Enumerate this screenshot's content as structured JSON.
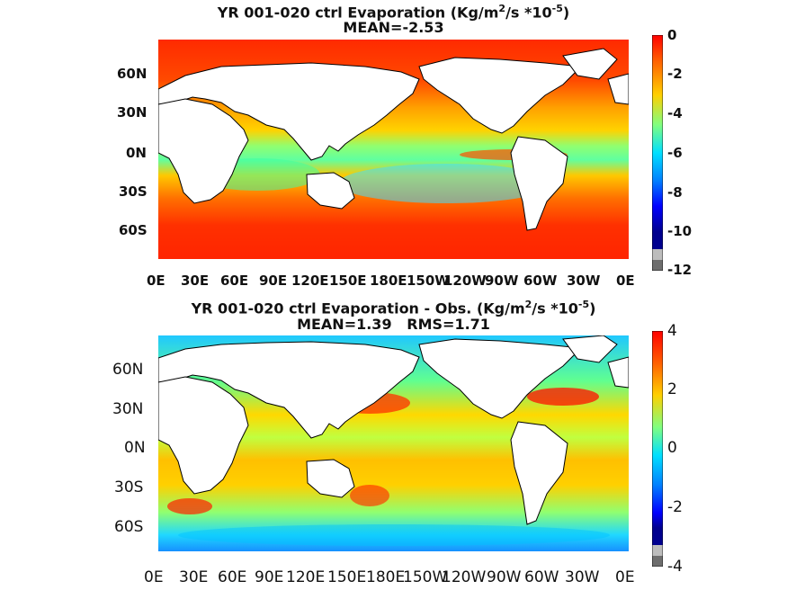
{
  "colors": {
    "land": "#ffffff",
    "jet": [
      "#00008f",
      "#0000ff",
      "#0080ff",
      "#00ffff",
      "#80ff80",
      "#ffff00",
      "#ff8000",
      "#ff0000",
      "#800000"
    ]
  },
  "top": {
    "title_line1": "YR 001-020 ctrl  Evaporation (Kg/m",
    "title_sup1": "2",
    "title_mid": "/s *10",
    "title_sup2": "-5",
    "title_end": ")",
    "mean_line": "MEAN=-2.53",
    "lat_labels": [
      "60N",
      "30N",
      "0N",
      "30S",
      "60S"
    ],
    "lon_labels": [
      "0E",
      "30E",
      "60E",
      "90E",
      "120E",
      "150E",
      "180E",
      "150W",
      "120W",
      "90W",
      "60W",
      "30W",
      "0E"
    ],
    "colorbar_labels": [
      "0",
      "-2",
      "-4",
      "-6",
      "-8",
      "-10",
      "-12"
    ],
    "colorbar_range": [
      -12,
      0
    ]
  },
  "bottom": {
    "title_line1": "YR 001-020 ctrl Evaporation - Obs. (Kg/m",
    "title_sup1": "2",
    "title_mid": "/s *10",
    "title_sup2": "-5",
    "title_end": ")",
    "stats_line": "MEAN=1.39   RMS=1.71",
    "lat_labels": [
      "60N",
      "30N",
      "0N",
      "30S",
      "60S"
    ],
    "lon_labels": [
      "0E",
      "30E",
      "60E",
      "90E",
      "120E",
      "150E",
      "180E",
      "150W",
      "120W",
      "90W",
      "60W",
      "30W",
      "0E"
    ],
    "colorbar_labels": [
      "4",
      "2",
      "0",
      "-2",
      "-4"
    ],
    "colorbar_range": [
      -4,
      4
    ]
  }
}
